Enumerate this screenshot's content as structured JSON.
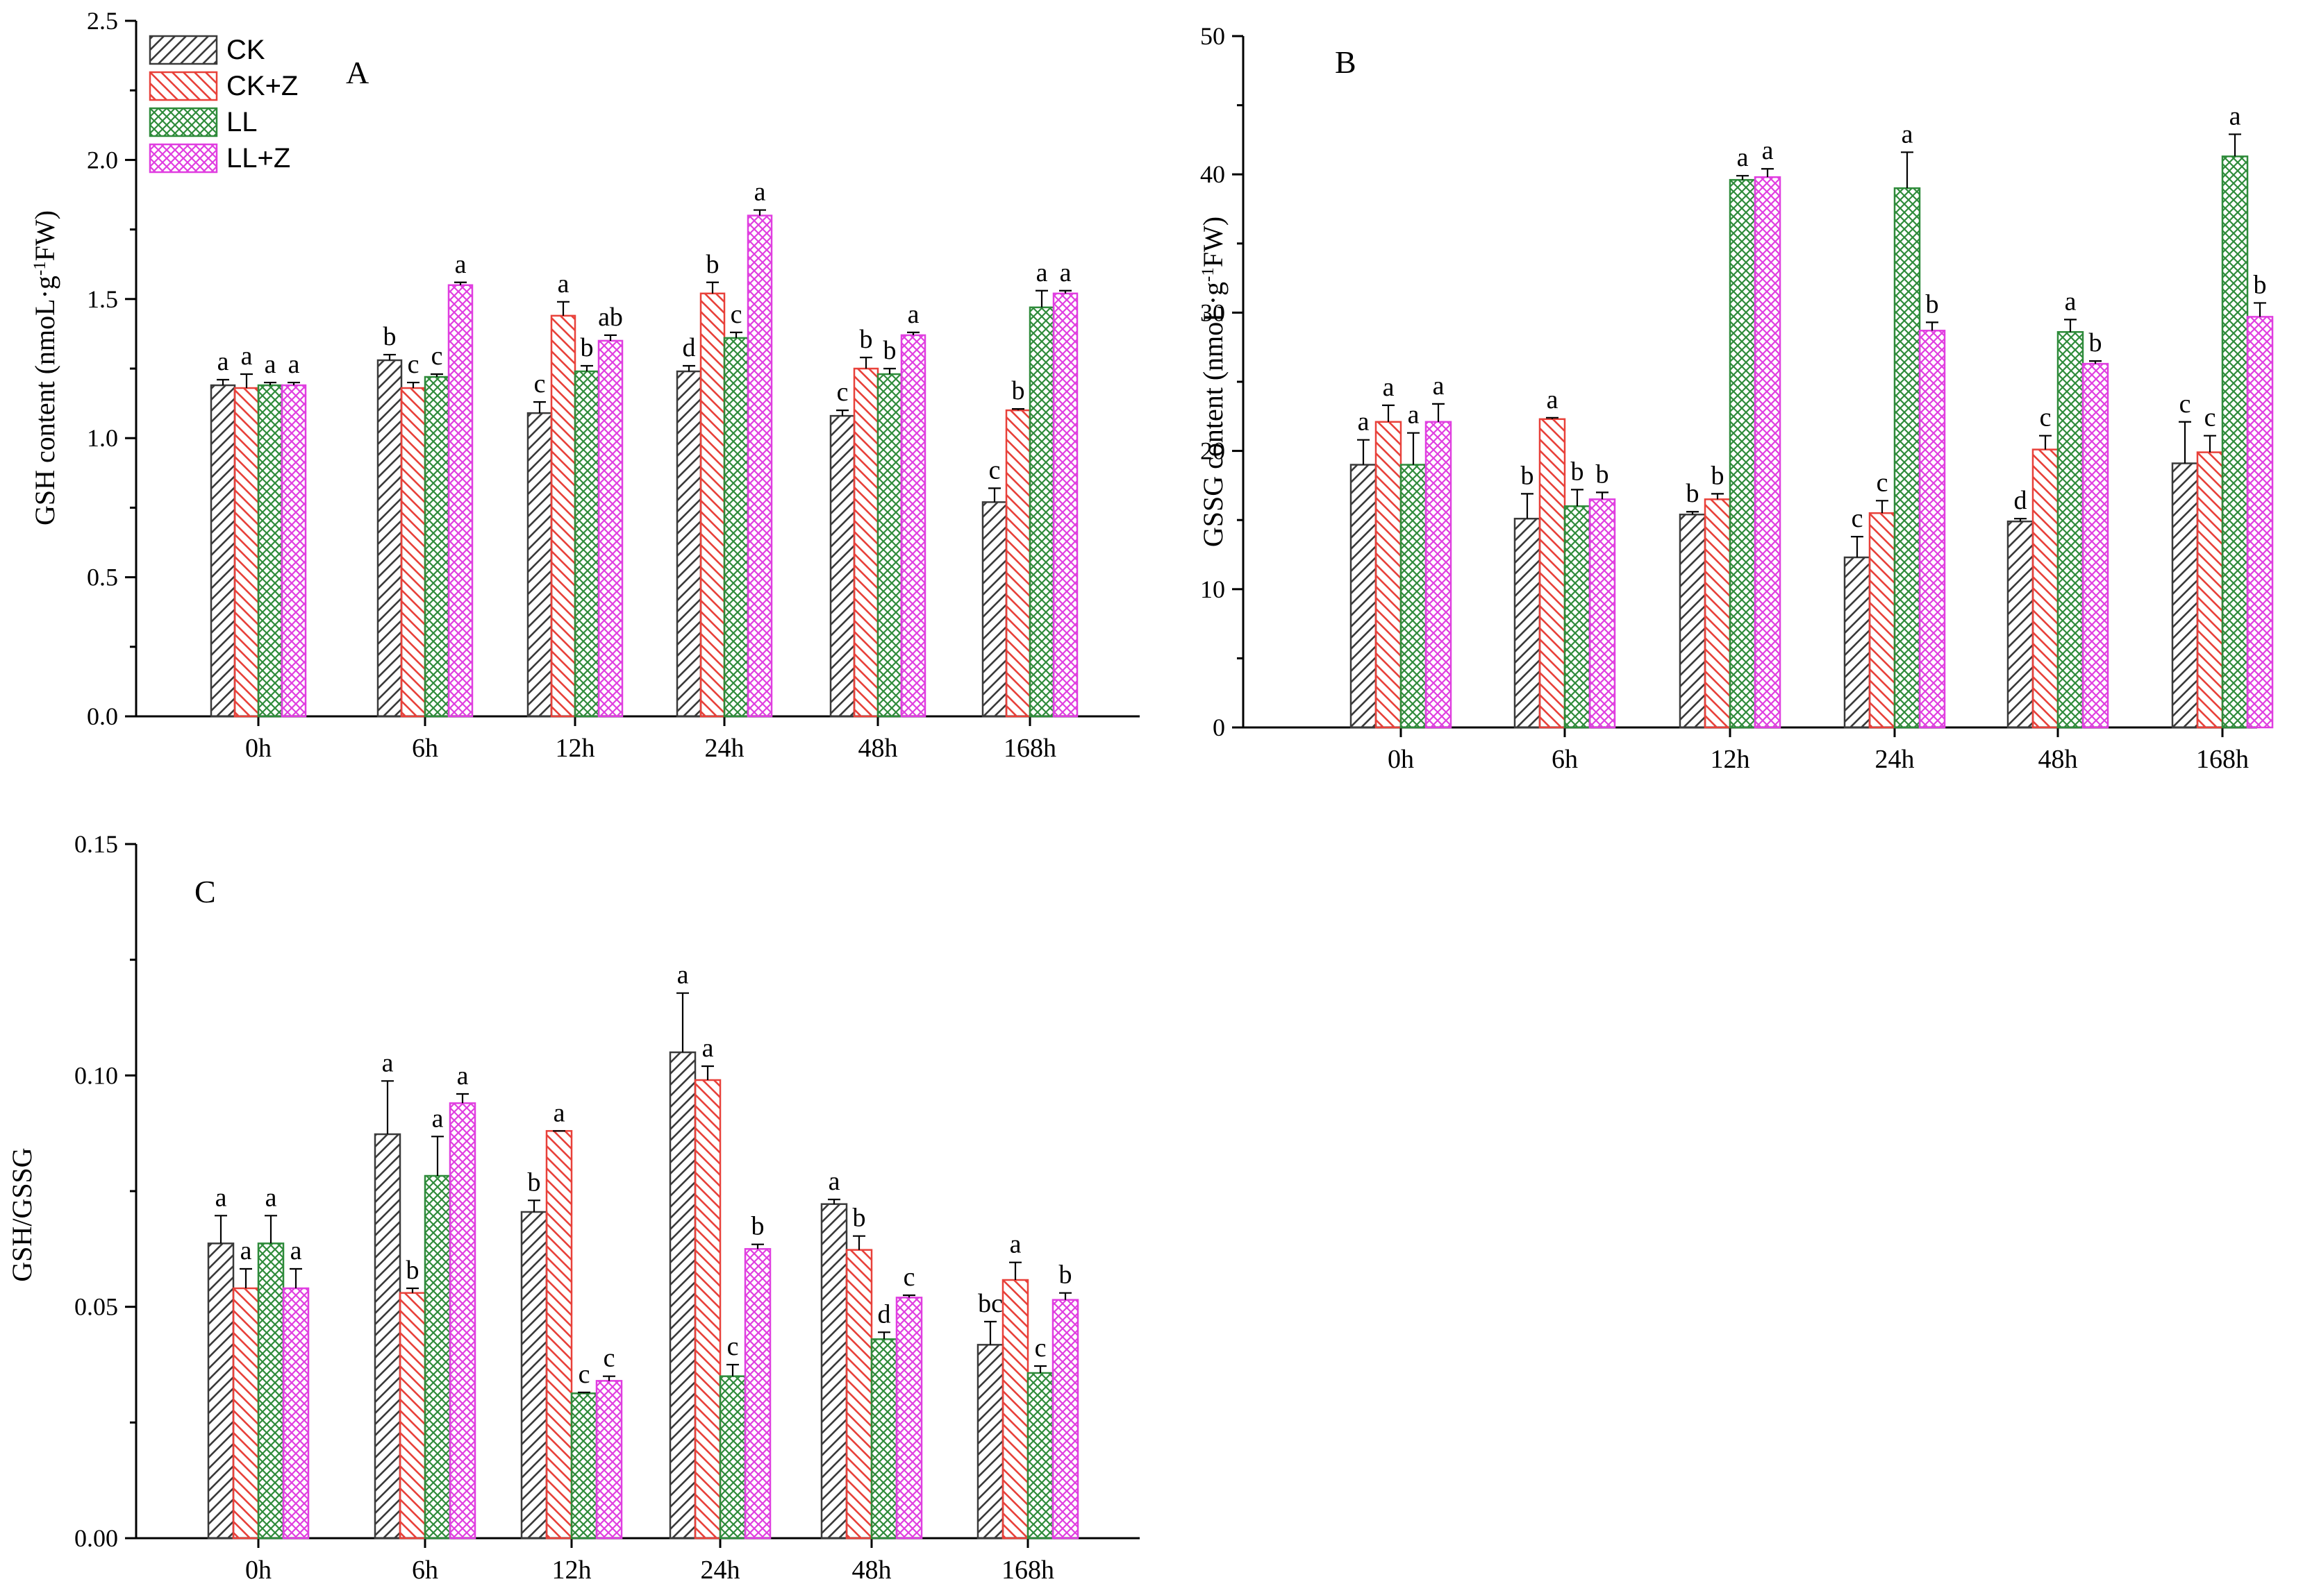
{
  "figure": {
    "legend": [
      {
        "name": "CK",
        "key": "ck"
      },
      {
        "name": "CK+Z",
        "key": "ckz"
      },
      {
        "name": "LL",
        "key": "ll"
      },
      {
        "name": "LL+Z",
        "key": "llz"
      }
    ],
    "colors": {
      "ck": "#3a3a3a",
      "ckz": "#e8413a",
      "ll": "#2e8b3a",
      "llz": "#e03ee0",
      "axis": "#000000"
    }
  },
  "chart_data": [
    {
      "panel": "A",
      "type": "bar",
      "title": "",
      "xlabel": "",
      "ylabel": "GSH content (nmoL·g⁻¹FW)",
      "ylabel_parts": [
        "GSH content (nmoL·g",
        "-1",
        "FW)"
      ],
      "categories": [
        "0h",
        "6h",
        "12h",
        "24h",
        "48h",
        "168h"
      ],
      "ylim": [
        0,
        2.5
      ],
      "yticks": [
        "0.0",
        "0.5",
        "1.0",
        "1.5",
        "2.0",
        "2.5"
      ],
      "ytick_values": [
        0,
        0.5,
        1.0,
        1.5,
        2.0,
        2.5
      ],
      "legend_position": "top-left",
      "series": [
        {
          "name": "CK",
          "key": "ck",
          "values": [
            1.19,
            1.28,
            1.09,
            1.24,
            1.08,
            0.77
          ],
          "errors": [
            0.02,
            0.02,
            0.04,
            0.02,
            0.02,
            0.05
          ],
          "letters": [
            "a",
            "b",
            "c",
            "d",
            "c",
            "c"
          ]
        },
        {
          "name": "CK+Z",
          "key": "ckz",
          "values": [
            1.18,
            1.18,
            1.44,
            1.52,
            1.25,
            1.1
          ],
          "errors": [
            0.05,
            0.02,
            0.05,
            0.04,
            0.04,
            0.005
          ],
          "letters": [
            "a",
            "c",
            "a",
            "b",
            "b",
            "b"
          ]
        },
        {
          "name": "LL",
          "key": "ll",
          "values": [
            1.19,
            1.22,
            1.24,
            1.36,
            1.23,
            1.47
          ],
          "errors": [
            0.01,
            0.01,
            0.02,
            0.02,
            0.02,
            0.06
          ],
          "letters": [
            "a",
            "c",
            "b",
            "c",
            "b",
            "a"
          ]
        },
        {
          "name": "LL+Z",
          "key": "llz",
          "values": [
            1.19,
            1.55,
            1.35,
            1.8,
            1.37,
            1.52
          ],
          "errors": [
            0.01,
            0.01,
            0.02,
            0.02,
            0.01,
            0.01
          ],
          "letters": [
            "a",
            "a",
            "ab",
            "a",
            "a",
            "a"
          ]
        }
      ]
    },
    {
      "panel": "B",
      "type": "bar",
      "title": "",
      "xlabel": "",
      "ylabel": "GSSG content (nmoL·g⁻¹FW)",
      "ylabel_parts": [
        "GSSG content (nmoL·g",
        "-1",
        "FW)"
      ],
      "categories": [
        "0h",
        "6h",
        "12h",
        "24h",
        "48h",
        "168h"
      ],
      "ylim": [
        0,
        50
      ],
      "yticks": [
        "0",
        "10",
        "20",
        "30",
        "40",
        "50"
      ],
      "ytick_values": [
        0,
        10,
        20,
        30,
        40,
        50
      ],
      "series": [
        {
          "name": "CK",
          "key": "ck",
          "values": [
            19.0,
            15.1,
            15.4,
            12.3,
            14.9,
            19.1
          ],
          "errors": [
            1.8,
            1.8,
            0.2,
            1.5,
            0.2,
            3.0
          ],
          "letters": [
            "a",
            "b",
            "b",
            "c",
            "d",
            "c"
          ]
        },
        {
          "name": "CK+Z",
          "key": "ckz",
          "values": [
            22.1,
            22.3,
            16.5,
            15.5,
            20.1,
            19.9
          ],
          "errors": [
            1.2,
            0.1,
            0.4,
            0.9,
            1.0,
            1.2
          ],
          "letters": [
            "a",
            "a",
            "b",
            "c",
            "c",
            "c"
          ]
        },
        {
          "name": "LL",
          "key": "ll",
          "values": [
            19.0,
            16.0,
            39.6,
            39.0,
            28.6,
            41.3
          ],
          "errors": [
            2.3,
            1.2,
            0.3,
            2.6,
            0.9,
            1.6
          ],
          "letters": [
            "a",
            "b",
            "a",
            "a",
            "a",
            "a"
          ]
        },
        {
          "name": "LL+Z",
          "key": "llz",
          "values": [
            22.1,
            16.5,
            39.8,
            28.7,
            26.3,
            29.7
          ],
          "errors": [
            1.3,
            0.5,
            0.6,
            0.6,
            0.2,
            1.0
          ],
          "letters": [
            "a",
            "b",
            "a",
            "b",
            "b",
            "b"
          ]
        }
      ]
    },
    {
      "panel": "C",
      "type": "bar",
      "title": "",
      "xlabel": "",
      "ylabel": "GSH/GSSG",
      "ylabel_parts": [
        "GSH/GSSG"
      ],
      "categories": [
        "0h",
        "6h",
        "12h",
        "24h",
        "48h",
        "168h"
      ],
      "ylim": [
        0,
        0.15
      ],
      "yticks": [
        "0.00",
        "0.05",
        "0.10",
        "0.15"
      ],
      "ytick_values": [
        0,
        0.05,
        0.1,
        0.15
      ],
      "series": [
        {
          "name": "CK",
          "key": "ck",
          "values": [
            0.0637,
            0.0873,
            0.0705,
            0.105,
            0.0722,
            0.0418
          ],
          "errors": [
            0.006,
            0.0115,
            0.0025,
            0.0128,
            0.001,
            0.005
          ],
          "letters": [
            "a",
            "a",
            "b",
            "a",
            "a",
            "bc"
          ]
        },
        {
          "name": "CK+Z",
          "key": "ckz",
          "values": [
            0.054,
            0.053,
            0.088,
            0.099,
            0.0623,
            0.0558
          ],
          "errors": [
            0.0042,
            0.001,
            0.0,
            0.003,
            0.003,
            0.0038
          ],
          "letters": [
            "a",
            "b",
            "a",
            "a",
            "b",
            "a"
          ]
        },
        {
          "name": "LL",
          "key": "ll",
          "values": [
            0.0637,
            0.0783,
            0.0313,
            0.035,
            0.043,
            0.0357
          ],
          "errors": [
            0.006,
            0.0085,
            0.0002,
            0.0025,
            0.0015,
            0.0015
          ],
          "letters": [
            "a",
            "a",
            "c",
            "c",
            "d",
            "c"
          ]
        },
        {
          "name": "LL+Z",
          "key": "llz",
          "values": [
            0.054,
            0.094,
            0.034,
            0.0625,
            0.052,
            0.0515
          ],
          "errors": [
            0.0042,
            0.002,
            0.001,
            0.001,
            0.0005,
            0.0015
          ],
          "letters": [
            "a",
            "a",
            "c",
            "b",
            "c",
            "b"
          ]
        }
      ]
    }
  ]
}
